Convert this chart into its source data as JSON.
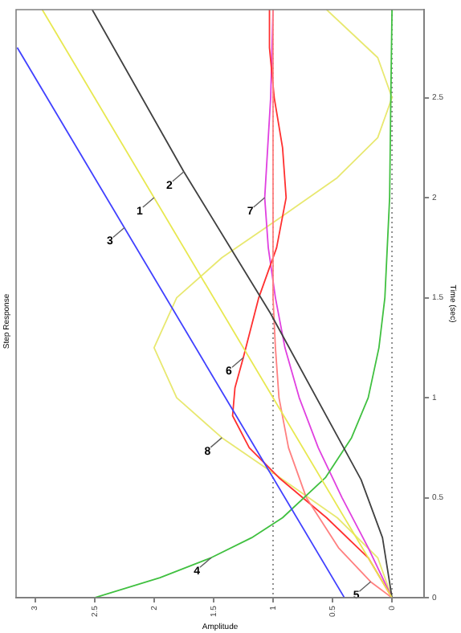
{
  "chart_data": {
    "type": "line",
    "title": "Step Response",
    "xlabel": "Amplitude",
    "ylabel": "Time (sec)",
    "xlim": [
      3.16,
      -0.27
    ],
    "xticks": [
      3,
      2.5,
      2,
      1.5,
      1,
      0.5,
      0
    ],
    "ylim": [
      0,
      2.94
    ],
    "yticks": [
      0,
      0.5,
      1,
      1.5,
      2,
      2.5
    ],
    "grid": false,
    "marker": "none",
    "line_style": "solid",
    "ref_lines": [
      {
        "axis": "x",
        "value": 0,
        "color": "#909090",
        "line_style": "dotted"
      },
      {
        "axis": "x",
        "value": 1,
        "color": "#909090",
        "line_style": "dotted"
      }
    ],
    "series": [
      {
        "color": "#e8e850",
        "x": [
          0,
          2.94
        ],
        "values": [
          0,
          2.94
        ]
      },
      {
        "color": "#404040",
        "x": [
          0,
          0.08,
          0.26,
          1.02,
          1.75,
          2.52
        ],
        "values": [
          0,
          0.3,
          0.59,
          1.42,
          2.13,
          2.94
        ]
      },
      {
        "color": "#4040ff",
        "x": [
          0.4,
          3.15
        ],
        "values": [
          0,
          2.75
        ]
      },
      {
        "color": "#40c040",
        "x": [
          2.5,
          1.95,
          1.52,
          1.18,
          0.92,
          0.56,
          0.34,
          0.2,
          0.11,
          0.06,
          0.02,
          0.01,
          0
        ],
        "values": [
          0,
          0.1,
          0.2,
          0.3,
          0.4,
          0.6,
          0.8,
          1.0,
          1.25,
          1.5,
          2.0,
          2.5,
          2.94
        ]
      },
      {
        "color": "#ff8080",
        "x": [
          0,
          0.18,
          0.45,
          0.72,
          0.87,
          0.95,
          0.98,
          1.0,
          1.0
        ],
        "values": [
          0,
          0.08,
          0.25,
          0.5,
          0.75,
          1.0,
          1.25,
          1.5,
          2.94
        ]
      },
      {
        "color": "#ff3030",
        "x": [
          0,
          0.2,
          0.55,
          0.95,
          1.2,
          1.34,
          1.32,
          1.25,
          1.12,
          0.97,
          0.89,
          0.92,
          0.99,
          1.03,
          1.03
        ],
        "values": [
          0,
          0.2,
          0.4,
          0.6,
          0.75,
          0.91,
          1.05,
          1.2,
          1.5,
          1.75,
          2.0,
          2.25,
          2.5,
          2.75,
          2.94
        ]
      },
      {
        "color": "#e040e0",
        "x": [
          0,
          0.2,
          0.42,
          0.62,
          0.78,
          0.9,
          0.98,
          1.04,
          1.07,
          1.02,
          1.0
        ],
        "values": [
          0,
          0.25,
          0.5,
          0.75,
          1.0,
          1.25,
          1.5,
          1.75,
          2.0,
          2.5,
          2.94
        ]
      },
      {
        "color": "#e8e870",
        "x": [
          0,
          0.12,
          0.46,
          0.94,
          1.43,
          1.81,
          2.0,
          1.81,
          1.43,
          0.94,
          0.46,
          0.12,
          0,
          0.12,
          0.55
        ],
        "values": [
          0,
          0.2,
          0.4,
          0.6,
          0.8,
          1.0,
          1.25,
          1.5,
          1.7,
          1.9,
          2.1,
          2.3,
          2.5,
          2.7,
          2.94
        ]
      }
    ],
    "annotations": [
      {
        "text": "1",
        "x": 2.0,
        "y": 2.0
      },
      {
        "text": "2",
        "x": 1.75,
        "y": 2.13
      },
      {
        "text": "3",
        "x": 2.25,
        "y": 1.85
      },
      {
        "text": "4",
        "x": 1.52,
        "y": 0.2
      },
      {
        "text": "5",
        "x": 0.18,
        "y": 0.08
      },
      {
        "text": "6",
        "x": 1.25,
        "y": 1.2
      },
      {
        "text": "7",
        "x": 1.07,
        "y": 2.0
      },
      {
        "text": "8",
        "x": 1.43,
        "y": 0.8
      }
    ]
  }
}
